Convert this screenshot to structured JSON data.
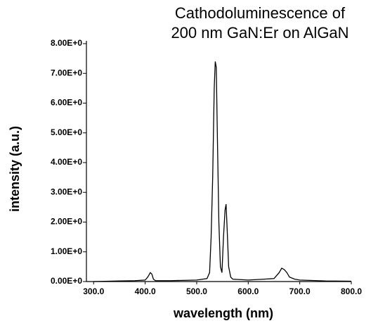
{
  "chart_data": {
    "type": "line",
    "title": [
      "Cathodoluminescence of",
      "200 nm GaN:Er on AlGaN"
    ],
    "x_label": "wavelength (nm)",
    "y_label": "intensity (a.u.)",
    "x": [
      300,
      350,
      380,
      400,
      405,
      410,
      413,
      416,
      420,
      450,
      500,
      520,
      525,
      528,
      531,
      534,
      536,
      538,
      540,
      543,
      546,
      549,
      552,
      555,
      557,
      559,
      562,
      566,
      570,
      600,
      650,
      660,
      665,
      670,
      675,
      680,
      690,
      700,
      750,
      800
    ],
    "series": [
      {
        "color": "#000000",
        "values": [
          0,
          0.02,
          0.03,
          0.05,
          0.15,
          0.3,
          0.25,
          0.08,
          0.03,
          0.03,
          0.05,
          0.1,
          0.3,
          1.5,
          3.5,
          6.5,
          7.4,
          7.2,
          5.0,
          2.0,
          0.5,
          0.3,
          1.5,
          2.4,
          2.6,
          1.8,
          0.5,
          0.15,
          0.08,
          0.05,
          0.1,
          0.3,
          0.45,
          0.4,
          0.3,
          0.15,
          0.08,
          0.05,
          0.02,
          0.01
        ]
      }
    ],
    "xlim": [
      286,
      800
    ],
    "ylim": [
      0,
      8
    ],
    "xticks": [
      {
        "value": 300,
        "label": "300.0"
      },
      {
        "value": 400,
        "label": "400.0"
      },
      {
        "value": 500,
        "label": "500.0"
      },
      {
        "value": 600,
        "label": "600.0"
      },
      {
        "value": 700,
        "label": "700.0"
      },
      {
        "value": 800,
        "label": "800.0"
      }
    ],
    "yticks": [
      {
        "value": 0,
        "label": "0.00E+0"
      },
      {
        "value": 1,
        "label": "1.00E+0"
      },
      {
        "value": 2,
        "label": "2.00E+0"
      },
      {
        "value": 3,
        "label": "3.00E+0"
      },
      {
        "value": 4,
        "label": "4.00E+0"
      },
      {
        "value": 5,
        "label": "5.00E+0"
      },
      {
        "value": 6,
        "label": "6.00E+0"
      },
      {
        "value": 7,
        "label": "7.00E+0"
      },
      {
        "value": 8,
        "label": "8.00E+0"
      }
    ],
    "grid": false
  }
}
